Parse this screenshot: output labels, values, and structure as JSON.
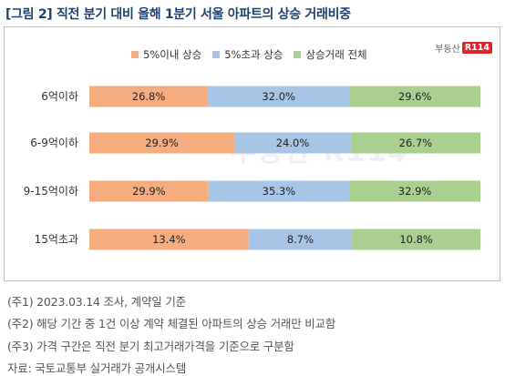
{
  "title": "[그림 2] 직전 분기 대비 올해 1분기 서울 아파트의 상승 거래비중",
  "logo": {
    "brand_text": "부동산",
    "brand_mark": "R114"
  },
  "chart_data": {
    "type": "bar",
    "orientation": "horizontal",
    "stacked": true,
    "normalized_percent": true,
    "categories": [
      "6억이하",
      "6-9억이하",
      "9-15억이하",
      "15억초과"
    ],
    "series": [
      {
        "name": "5%이내 상승",
        "color": "#f5ad7f",
        "values": [
          26.8,
          29.9,
          29.9,
          13.4
        ],
        "labels": [
          "26.8%",
          "29.9%",
          "29.9%",
          "13.4%"
        ]
      },
      {
        "name": "5%초과 상승",
        "color": "#a7c5e6",
        "values": [
          32.0,
          24.0,
          35.3,
          8.7
        ],
        "labels": [
          "32.0%",
          "24.0%",
          "35.3%",
          "8.7%"
        ]
      },
      {
        "name": "상승거래 전체",
        "color": "#a9d08e",
        "values": [
          29.6,
          26.7,
          32.9,
          10.8
        ],
        "labels": [
          "29.6%",
          "26.7%",
          "32.9%",
          "10.8%"
        ]
      }
    ],
    "legend_position": "top",
    "grid": false
  },
  "notes": [
    "(주1) 2023.03.14 조사, 계약일 기준",
    "(주2) 해당 기간 중 1건 이상 계약 체결된 아파트의 상승 거래만 비교함",
    "(주3) 가격 구간은 직전 분기 최고거래가격을 기준으로 구분함",
    "자료: 국토교통부 실거래가 공개시스템"
  ]
}
